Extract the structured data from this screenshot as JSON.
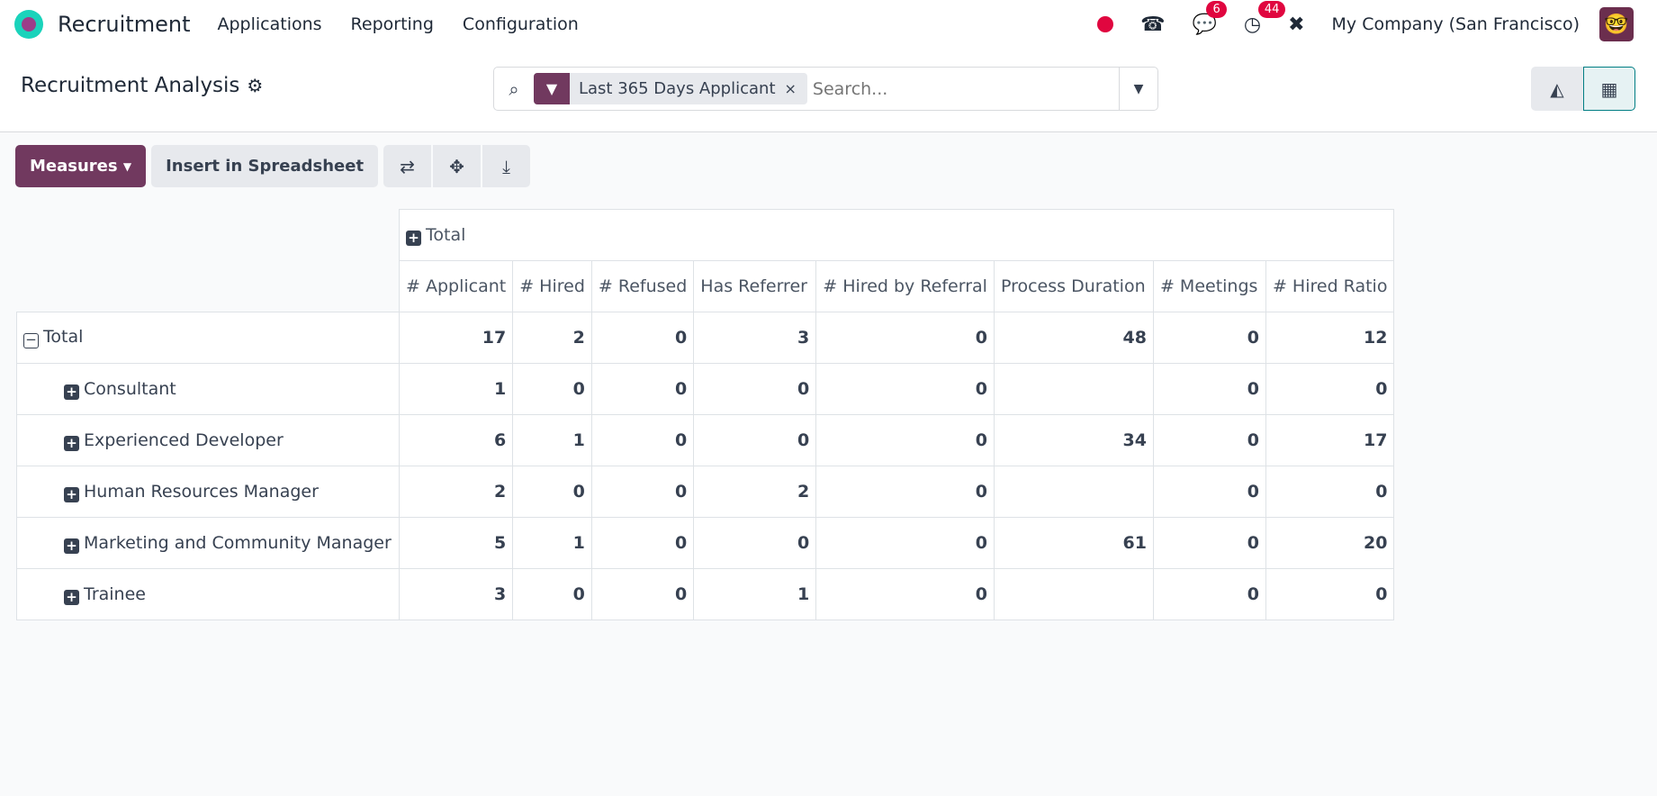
{
  "nav": {
    "app": "Recruitment",
    "menus": [
      "Applications",
      "Reporting",
      "Configuration"
    ],
    "messages_count": "6",
    "activities_count": "44",
    "company": "My Company (San Francisco)"
  },
  "control": {
    "title": "Recruitment Analysis",
    "facet": "Last 365 Days Applicant",
    "search_placeholder": "Search..."
  },
  "toolbar": {
    "measures": "Measures",
    "insert": "Insert in Spreadsheet"
  },
  "pivot": {
    "col_group": "Total",
    "headers": [
      "# Applicant",
      "# Hired",
      "# Refused",
      "Has Referrer",
      "# Hired by Referral",
      "Process Duration",
      "# Meetings",
      "# Hired Ratio"
    ],
    "total": {
      "label": "Total",
      "values": [
        "17",
        "2",
        "0",
        "3",
        "0",
        "48",
        "0",
        "12"
      ]
    },
    "rows": [
      {
        "label": "Consultant",
        "values": [
          "1",
          "0",
          "0",
          "0",
          "0",
          "",
          "0",
          "0"
        ]
      },
      {
        "label": "Experienced Developer",
        "values": [
          "6",
          "1",
          "0",
          "0",
          "0",
          "34",
          "0",
          "17"
        ]
      },
      {
        "label": "Human Resources Manager",
        "values": [
          "2",
          "0",
          "0",
          "2",
          "0",
          "",
          "0",
          "0"
        ]
      },
      {
        "label": "Marketing and Community Manager",
        "values": [
          "5",
          "1",
          "0",
          "0",
          "0",
          "61",
          "0",
          "20"
        ]
      },
      {
        "label": "Trainee",
        "values": [
          "3",
          "0",
          "0",
          "1",
          "0",
          "",
          "0",
          "0"
        ]
      }
    ]
  },
  "colors": {
    "primary": "#71395f",
    "accent": "#017e84",
    "badge": "#e0063f"
  }
}
